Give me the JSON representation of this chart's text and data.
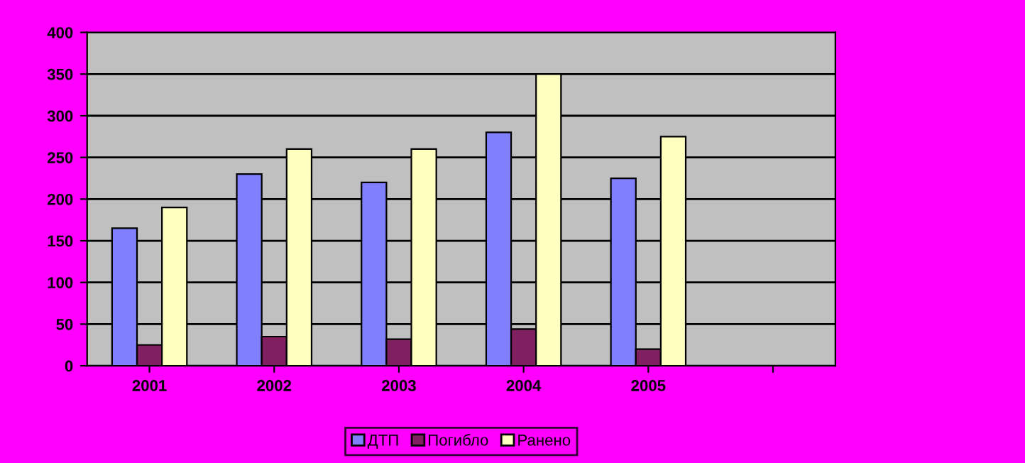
{
  "chart_data": {
    "type": "bar",
    "categories": [
      "2001",
      "2002",
      "2003",
      "2004",
      "2005",
      null
    ],
    "series": [
      {
        "name": "ДТП",
        "color": "#8080ff",
        "values": [
          165,
          230,
          220,
          280,
          225,
          null
        ]
      },
      {
        "name": "Погибло",
        "color": "#802060",
        "values": [
          25,
          35,
          32,
          44,
          20,
          null
        ]
      },
      {
        "name": "Ранено",
        "color": "#ffffc0",
        "values": [
          190,
          260,
          260,
          350,
          275,
          null
        ]
      }
    ],
    "ylim": [
      0,
      400
    ],
    "yticks": [
      0,
      50,
      100,
      150,
      200,
      250,
      300,
      350,
      400
    ],
    "grid": "y",
    "legend": "bottom"
  }
}
